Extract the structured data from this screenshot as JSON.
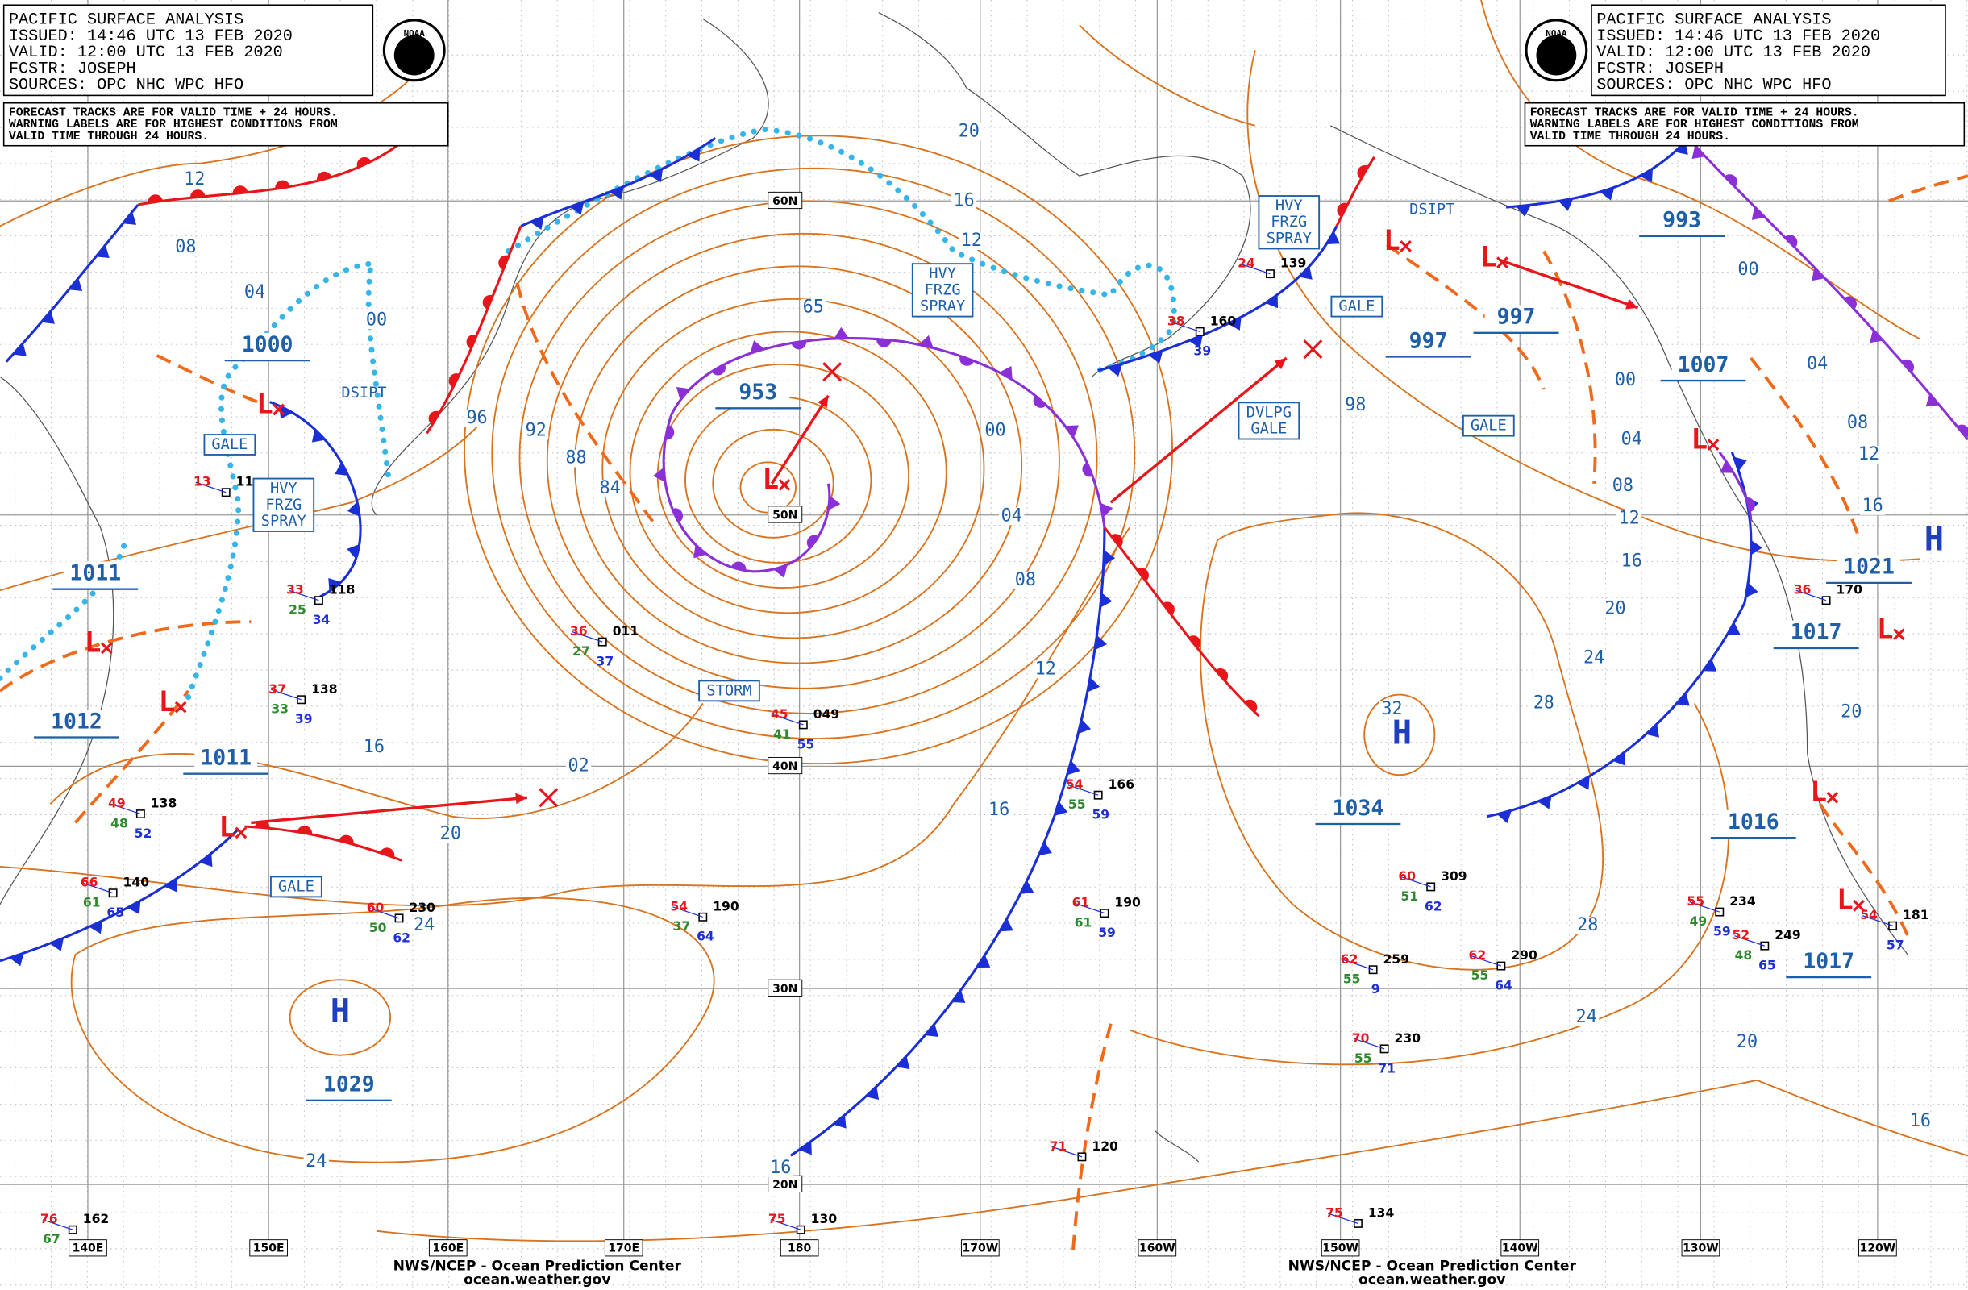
{
  "header_left": [
    "PACIFIC SURFACE ANALYSIS",
    "ISSUED: 14:46 UTC 13 FEB 2020",
    "VALID:  12:00 UTC 13 FEB 2020",
    "FCSTR:  JOSEPH",
    "SOURCES: OPC NHC WPC HFO"
  ],
  "notes_left": [
    "FORECAST TRACKS ARE FOR VALID TIME + 24 HOURS.",
    "WARNING LABELS ARE FOR HIGHEST CONDITIONS FROM",
    "VALID TIME THROUGH 24 HOURS."
  ],
  "header_right": [
    "PACIFIC SURFACE ANALYSIS",
    "ISSUED: 14:46 UTC 13 FEB 2020",
    "VALID:  12:00 UTC 13 FEB 2020",
    "FCSTR:  JOSEPH",
    "SOURCES: OPC NHC WPC HFO"
  ],
  "notes_right": [
    "FORECAST TRACKS ARE FOR VALID TIME + 24 HOURS.",
    "WARNING LABELS ARE FOR HIGHEST CONDITIONS FROM",
    "VALID TIME THROUGH 24 HOURS."
  ],
  "logos": [
    "NOAA",
    "NOAA"
  ],
  "latitude_labels": [
    "60N",
    "50N",
    "40N",
    "30N",
    "20N"
  ],
  "longitude_labels": [
    "140E",
    "150E",
    "160E",
    "170E",
    "180",
    "170W",
    "160W",
    "150W",
    "140W",
    "130W",
    "120W"
  ],
  "isobar_labels": [
    "12",
    "08",
    "04",
    "00",
    "96",
    "92",
    "88",
    "84",
    "20",
    "16",
    "12",
    "65",
    "00",
    "04",
    "08",
    "12",
    "16",
    "02",
    "20",
    "24",
    "16",
    "24",
    "16",
    "98",
    "00",
    "04",
    "08",
    "12",
    "16",
    "20",
    "24",
    "28",
    "32",
    "28",
    "24",
    "20",
    "16",
    "00",
    "04",
    "08",
    "12",
    "16",
    "20"
  ],
  "pressure_centers": [
    "1000",
    "953",
    "1011",
    "1012",
    "1011",
    "1029",
    "1034",
    "997",
    "997",
    "993",
    "1007",
    "1021",
    "1017",
    "1016",
    "1017"
  ],
  "highs": [
    "H",
    "H",
    "H"
  ],
  "lows": [
    "L",
    "L",
    "L",
    "L",
    "L",
    "L",
    "L",
    "L",
    "L",
    "L",
    "L"
  ],
  "warnings": [
    {
      "lines": [
        "GALE"
      ],
      "boxed": true
    },
    {
      "lines": [
        "HVY",
        "FRZG",
        "SPRAY"
      ],
      "boxed": true
    },
    {
      "lines": [
        "DSIPT"
      ],
      "boxed": false
    },
    {
      "lines": [
        "HVY",
        "FRZG",
        "SPRAY"
      ],
      "boxed": true
    },
    {
      "lines": [
        "STORM"
      ],
      "boxed": true
    },
    {
      "lines": [
        "GALE"
      ],
      "boxed": true
    },
    {
      "lines": [
        "HVY",
        "FRZG",
        "SPRAY"
      ],
      "boxed": true
    },
    {
      "lines": [
        "GALE"
      ],
      "boxed": true
    },
    {
      "lines": [
        "DVLPG",
        "GALE"
      ],
      "boxed": true
    },
    {
      "lines": [
        "GALE"
      ],
      "boxed": true
    },
    {
      "lines": [
        "DSIPT"
      ],
      "boxed": false
    }
  ],
  "stations": [
    {
      "temp": "45",
      "pressure": "049",
      "dewpoint": "41",
      "sea": "55"
    },
    {
      "temp": "37",
      "pressure": "138",
      "dewpoint": "33",
      "sea": "39"
    },
    {
      "temp": "33",
      "pressure": "118",
      "dewpoint": "25",
      "sea": "34"
    },
    {
      "temp": "36",
      "pressure": "011",
      "dewpoint": "27",
      "sea": "37"
    },
    {
      "temp": "49",
      "pressure": "138",
      "dewpoint": "48",
      "sea": "52"
    },
    {
      "temp": "66",
      "pressure": "140",
      "dewpoint": "61",
      "sea": "65"
    },
    {
      "temp": "60",
      "pressure": "230",
      "dewpoint": "50",
      "sea": "62"
    },
    {
      "temp": "54",
      "pressure": "190",
      "dewpoint": "37",
      "sea": "64"
    },
    {
      "temp": "54",
      "pressure": "166",
      "dewpoint": "55",
      "sea": "59"
    },
    {
      "temp": "61",
      "pressure": "190",
      "dewpoint": "61",
      "sea": "59"
    },
    {
      "temp": "60",
      "pressure": "309",
      "dewpoint": "51",
      "sea": "62"
    },
    {
      "temp": "62",
      "pressure": "259",
      "dewpoint": "55",
      "sea": "9"
    },
    {
      "temp": "62",
      "pressure": "290",
      "dewpoint": "55",
      "sea": "64"
    },
    {
      "temp": "70",
      "pressure": "230",
      "dewpoint": "55",
      "sea": "71"
    },
    {
      "temp": "55",
      "pressure": "234",
      "dewpoint": "49",
      "sea": "59"
    },
    {
      "temp": "52",
      "pressure": "249",
      "dewpoint": "48",
      "sea": "65"
    },
    {
      "temp": "71",
      "pressure": "120"
    },
    {
      "temp": "75",
      "pressure": "130"
    },
    {
      "temp": "75",
      "pressure": "134"
    },
    {
      "temp": "76",
      "pressure": "162",
      "dewpoint": "67"
    },
    {
      "temp": "24",
      "pressure": "139"
    },
    {
      "temp": "38",
      "pressure": "160",
      "sea": "39"
    },
    {
      "temp": "13",
      "pressure": "11"
    },
    {
      "temp": "36",
      "pressure": "170"
    },
    {
      "temp": "54",
      "pressure": "181",
      "sea": "57"
    }
  ],
  "footer_left": [
    "NWS/NCEP - Ocean Prediction Center",
    "ocean.weather.gov"
  ],
  "footer_right": [
    "NWS/NCEP - Ocean Prediction Center",
    "ocean.weather.gov"
  ]
}
